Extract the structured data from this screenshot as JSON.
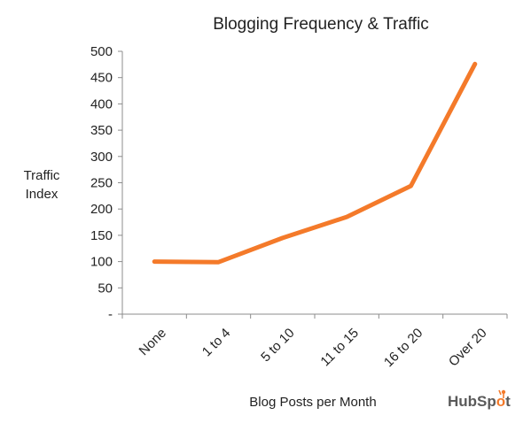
{
  "chart_data": {
    "type": "line",
    "title": "Blogging Frequency & Traffic",
    "xlabel": "Blog Posts per Month",
    "ylabel": "Traffic Index",
    "categories": [
      "None",
      "1 to 4",
      "5 to 10",
      "11 to 15",
      "16 to 20",
      "Over 20"
    ],
    "series": [
      {
        "values": [
          100,
          99,
          145,
          185,
          244,
          476
        ],
        "color": "#f47a2a"
      }
    ],
    "ylim": [
      0,
      500
    ],
    "yticks": [
      0,
      50,
      100,
      150,
      200,
      250,
      300,
      350,
      400,
      450,
      500
    ],
    "ytick_labels": [
      "-",
      "50",
      "100",
      "150",
      "200",
      "250",
      "300",
      "350",
      "400",
      "450",
      "500"
    ],
    "grid": false,
    "legend": "none"
  },
  "logo": {
    "text": "HubSpot",
    "brand_color": "#f47a2a"
  }
}
